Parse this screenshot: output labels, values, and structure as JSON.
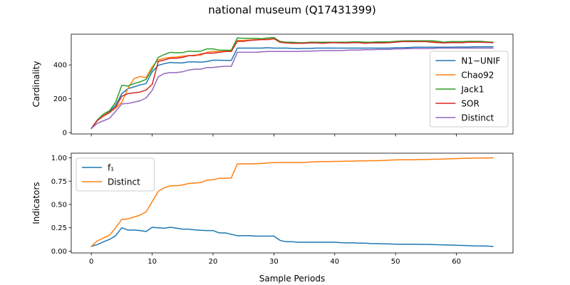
{
  "figure": {
    "title": "national museum (Q17431399)"
  },
  "chart_data": [
    {
      "type": "line",
      "ylabel": "Cardinality",
      "xlabel": "",
      "xlim": [
        -3.3,
        69.3
      ],
      "ylim": [
        -8,
        582
      ],
      "xticks": [
        0,
        10,
        20,
        30,
        40,
        50,
        60
      ],
      "yticks": [
        0,
        200,
        400
      ],
      "show_x_tick_labels": false,
      "legend_position": "center-right",
      "series": [
        {
          "name": "N1−UNIF",
          "color": "#1f77b4",
          "values": [
            25,
            72,
            100,
            125,
            162,
            230,
            260,
            270,
            282,
            290,
            360,
            398,
            408,
            415,
            412,
            412,
            418,
            418,
            417,
            420,
            428,
            428,
            427,
            427,
            500,
            500,
            500,
            500,
            500,
            502,
            500,
            500,
            500,
            498,
            497,
            498,
            498,
            500,
            500,
            500,
            500,
            500,
            500,
            500,
            500,
            500,
            500,
            500,
            500,
            500,
            502,
            502,
            503,
            505,
            505,
            505,
            505,
            505,
            505,
            505,
            506,
            506,
            506,
            508,
            508,
            508,
            508
          ]
        },
        {
          "name": "Chao92",
          "color": "#ff7f0e",
          "values": [
            25,
            75,
            102,
            120,
            145,
            180,
            260,
            318,
            332,
            325,
            390,
            430,
            440,
            445,
            447,
            452,
            455,
            458,
            458,
            475,
            480,
            480,
            482,
            482,
            545,
            545,
            548,
            550,
            552,
            558,
            560,
            535,
            533,
            530,
            530,
            530,
            532,
            532,
            530,
            533,
            535,
            533,
            533,
            535,
            535,
            530,
            533,
            533,
            533,
            535,
            537,
            540,
            540,
            540,
            540,
            540,
            538,
            535,
            533,
            535,
            535,
            535,
            537,
            538,
            538,
            535,
            535
          ]
        },
        {
          "name": "Jack1",
          "color": "#2ca02c",
          "values": [
            25,
            75,
            110,
            130,
            180,
            280,
            275,
            290,
            300,
            315,
            375,
            445,
            462,
            475,
            472,
            473,
            482,
            480,
            482,
            495,
            495,
            488,
            487,
            487,
            560,
            558,
            558,
            558,
            555,
            560,
            562,
            540,
            535,
            535,
            532,
            532,
            535,
            535,
            535,
            535,
            535,
            535,
            535,
            537,
            537,
            535,
            535,
            537,
            537,
            537,
            540,
            542,
            543,
            543,
            543,
            543,
            543,
            540,
            535,
            538,
            538,
            538,
            540,
            540,
            540,
            537,
            535
          ]
        },
        {
          "name": "SOR",
          "color": "#d62728",
          "values": [
            25,
            72,
            98,
            118,
            150,
            215,
            230,
            235,
            240,
            252,
            285,
            420,
            430,
            440,
            440,
            445,
            455,
            455,
            465,
            470,
            470,
            475,
            480,
            480,
            540,
            540,
            545,
            548,
            550,
            550,
            555,
            535,
            530,
            528,
            528,
            528,
            530,
            530,
            528,
            530,
            532,
            530,
            530,
            532,
            532,
            528,
            530,
            530,
            530,
            532,
            535,
            538,
            538,
            538,
            538,
            538,
            535,
            532,
            530,
            532,
            532,
            532,
            535,
            535,
            535,
            533,
            532
          ]
        },
        {
          "name": "Distinct",
          "color": "#9467bd",
          "values": [
            25,
            55,
            70,
            85,
            125,
            170,
            172,
            180,
            188,
            205,
            250,
            330,
            350,
            355,
            355,
            360,
            370,
            375,
            375,
            385,
            385,
            390,
            392,
            392,
            475,
            475,
            475,
            475,
            478,
            480,
            480,
            480,
            480,
            480,
            480,
            482,
            482,
            483,
            485,
            485,
            485,
            485,
            487,
            488,
            488,
            490,
            490,
            492,
            492,
            492,
            495,
            495,
            497,
            497,
            497,
            497,
            497,
            500,
            500,
            500,
            500,
            500,
            500,
            500,
            500,
            500,
            500
          ]
        }
      ]
    },
    {
      "type": "line",
      "ylabel": "Indicators",
      "xlabel": "Sample Periods",
      "xlim": [
        -3.3,
        69.3
      ],
      "ylim": [
        -0.02,
        1.05
      ],
      "xticks": [
        0,
        10,
        20,
        30,
        40,
        50,
        60
      ],
      "yticks": [
        0.0,
        0.25,
        0.5,
        0.75,
        1.0
      ],
      "show_x_tick_labels": true,
      "legend_position": "upper-left",
      "series": [
        {
          "name": "f₁",
          "color": "#1f77b4",
          "values": [
            0.05,
            0.07,
            0.1,
            0.125,
            0.165,
            0.25,
            0.225,
            0.225,
            0.22,
            0.21,
            0.255,
            0.25,
            0.245,
            0.255,
            0.245,
            0.235,
            0.235,
            0.228,
            0.222,
            0.22,
            0.22,
            0.195,
            0.195,
            0.18,
            0.165,
            0.165,
            0.165,
            0.16,
            0.16,
            0.16,
            0.16,
            0.115,
            0.1,
            0.1,
            0.095,
            0.095,
            0.095,
            0.095,
            0.095,
            0.095,
            0.095,
            0.09,
            0.088,
            0.088,
            0.085,
            0.085,
            0.08,
            0.08,
            0.078,
            0.076,
            0.074,
            0.074,
            0.074,
            0.074,
            0.072,
            0.072,
            0.07,
            0.068,
            0.066,
            0.065,
            0.062,
            0.06,
            0.058,
            0.056,
            0.055,
            0.053,
            0.05
          ]
        },
        {
          "name": "Distinct",
          "color": "#ff7f0e",
          "values": [
            0.05,
            0.11,
            0.14,
            0.17,
            0.25,
            0.34,
            0.345,
            0.365,
            0.385,
            0.42,
            0.53,
            0.64,
            0.68,
            0.7,
            0.7,
            0.71,
            0.725,
            0.73,
            0.735,
            0.76,
            0.765,
            0.78,
            0.78,
            0.785,
            0.935,
            0.935,
            0.935,
            0.938,
            0.94,
            0.945,
            0.948,
            0.95,
            0.95,
            0.95,
            0.95,
            0.95,
            0.955,
            0.958,
            0.96,
            0.96,
            0.962,
            0.962,
            0.965,
            0.965,
            0.968,
            0.968,
            0.97,
            0.97,
            0.972,
            0.975,
            0.978,
            0.98,
            0.98,
            0.98,
            0.982,
            0.982,
            0.985,
            0.985,
            0.988,
            0.99,
            0.992,
            0.994,
            0.996,
            0.997,
            0.998,
            0.999,
            1.0
          ]
        }
      ]
    }
  ]
}
